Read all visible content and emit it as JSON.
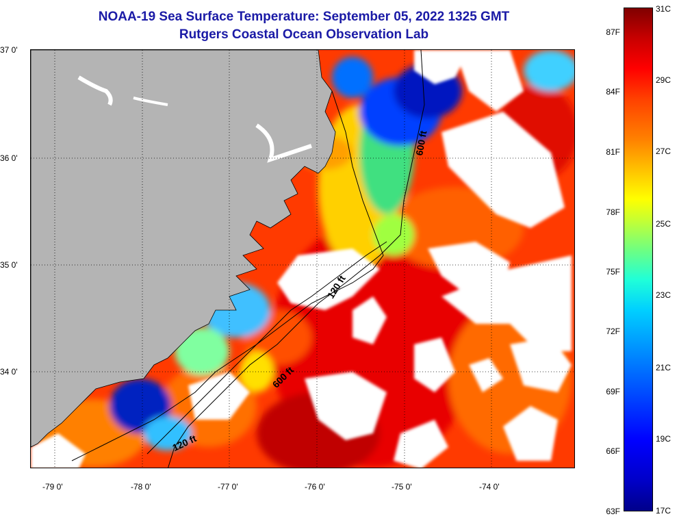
{
  "title": {
    "line1": "NOAA-19 Sea Surface Temperature:  September 05, 2022 1325 GMT",
    "line2": "Rutgers Coastal Ocean Observation Lab"
  },
  "map": {
    "lat_labels": [
      "37 0'",
      "36 0'",
      "35 0'",
      "34 0'"
    ],
    "lon_labels": [
      "-79 0'",
      "-78 0'",
      "-77 0'",
      "-76 0'",
      "-75 0'",
      "-74 0'"
    ],
    "contours": [
      {
        "label": "600 ft"
      },
      {
        "label": "120 ft"
      },
      {
        "label": "600 ft"
      },
      {
        "label": "120 ft"
      }
    ],
    "colors": {
      "land": "#b4b4b4",
      "cloud": "#ffffff",
      "grid": "#000000"
    }
  },
  "colorbar": {
    "fahrenheit": [
      "87F",
      "84F",
      "81F",
      "78F",
      "75F",
      "72F",
      "69F",
      "66F",
      "63F"
    ],
    "celsius": [
      "31C",
      "29C",
      "27C",
      "25C",
      "23C",
      "21C",
      "19C",
      "17C"
    ]
  }
}
